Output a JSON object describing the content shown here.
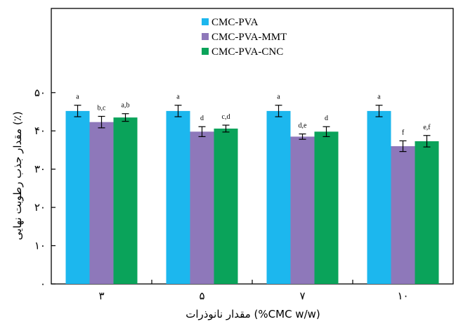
{
  "chart_data": {
    "type": "bar",
    "categories": [
      "۳",
      "۵",
      "۷",
      "۱۰"
    ],
    "xlabel": "مقدار نانوذرات (%CMC w/w)",
    "ylabel": "مقدار جذب رطوبت نهایی (٪)",
    "ylim": [
      0,
      72
    ],
    "yticks": [
      {
        "value": 0,
        "label": "۰"
      },
      {
        "value": 10,
        "label": "۱۰"
      },
      {
        "value": 20,
        "label": "۲۰"
      },
      {
        "value": 30,
        "label": "۳۰"
      },
      {
        "value": 40,
        "label": "۴۰"
      },
      {
        "value": 50,
        "label": "۵۰"
      }
    ],
    "series": [
      {
        "name": "CMC-PVA",
        "color": "#1cb7ee",
        "values": [
          45.2,
          45.2,
          45.2,
          45.2
        ],
        "errors": [
          1.5,
          1.5,
          1.5,
          1.5
        ],
        "labels": [
          "a",
          "a",
          "a",
          "a"
        ]
      },
      {
        "name": "CMC-PVA-MMT",
        "color": "#8e78ba",
        "values": [
          42.3,
          39.8,
          38.5,
          36.0
        ],
        "errors": [
          1.5,
          1.3,
          0.7,
          1.4
        ],
        "labels": [
          "b,c",
          "d",
          "d,e",
          "f"
        ]
      },
      {
        "name": "CMC-PVA-CNC",
        "color": "#0aa35a",
        "values": [
          43.5,
          40.6,
          39.8,
          37.3
        ],
        "errors": [
          1.0,
          0.9,
          1.3,
          1.5
        ],
        "labels": [
          "a,b",
          "c,d",
          "d",
          "e,f"
        ]
      }
    ],
    "legend_position": "top-center",
    "grid": false
  }
}
